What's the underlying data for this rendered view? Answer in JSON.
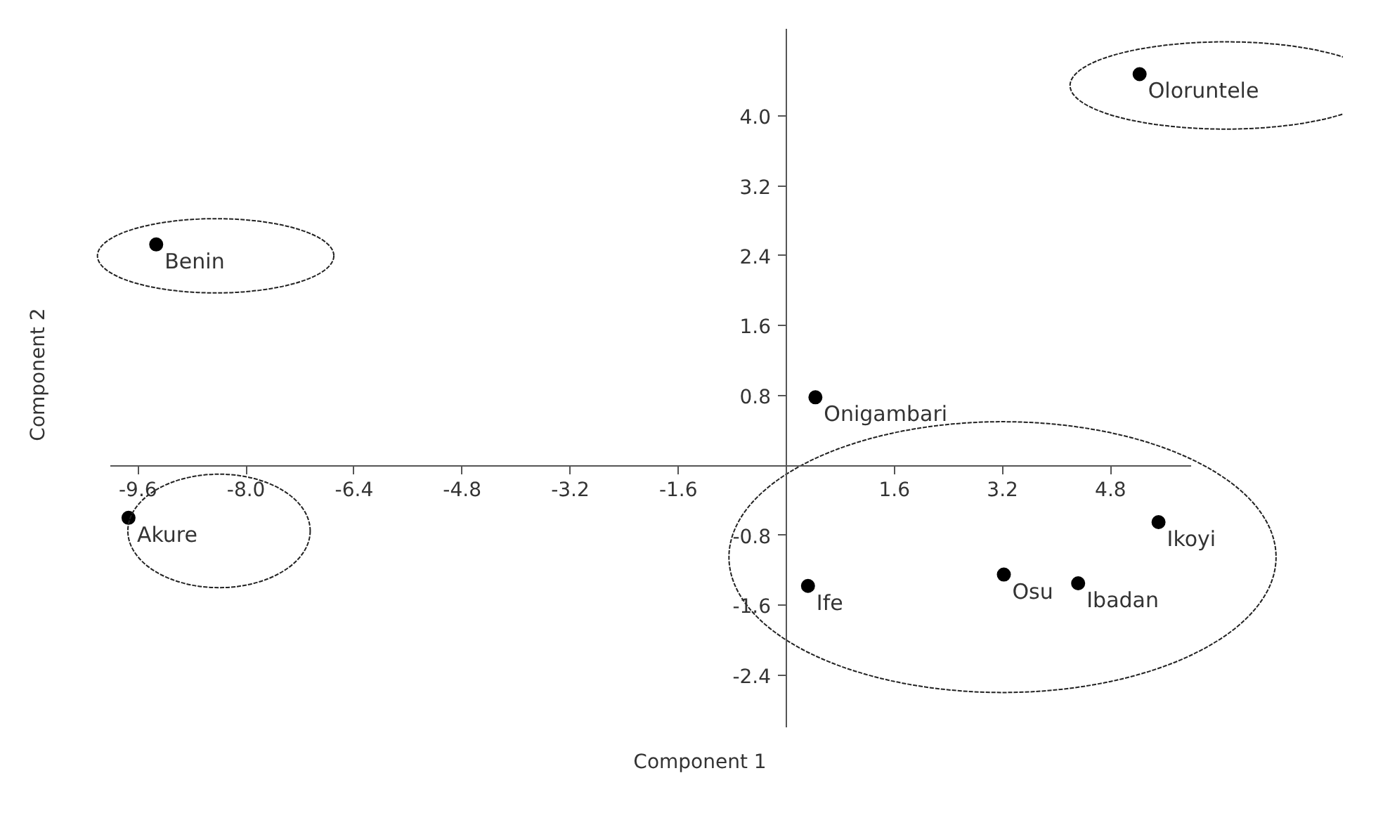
{
  "chart_data": {
    "type": "scatter",
    "xlabel": "Component 1",
    "ylabel": "Component 2",
    "x": [
      5.23,
      -9.33,
      0.43,
      -9.74,
      5.51,
      3.22,
      4.32,
      0.32
    ],
    "series": [
      {
        "color": "#000000",
        "values": [
          4.48,
          2.53,
          0.78,
          -0.6,
          -0.65,
          -1.25,
          -1.35,
          -1.38
        ]
      }
    ],
    "annotations": [
      {
        "text": "Oloruntele",
        "x": 5.23,
        "y": 4.48
      },
      {
        "text": "Benin",
        "x": -9.33,
        "y": 2.53
      },
      {
        "text": "Onigambari",
        "x": 0.43,
        "y": 0.78
      },
      {
        "text": "Akure",
        "x": -9.74,
        "y": -0.6
      },
      {
        "text": "Ikoyi",
        "x": 5.51,
        "y": -0.65
      },
      {
        "text": "Osu",
        "x": 3.22,
        "y": -1.25
      },
      {
        "text": "Ibadan",
        "x": 4.32,
        "y": -1.35
      },
      {
        "text": "Ife",
        "x": 0.32,
        "y": -1.38
      }
    ],
    "xlim": [
      -10.0,
      6.0
    ],
    "ylim": [
      -3.0,
      5.0
    ],
    "xticks": [
      -9.6,
      {
        "value": -8,
        "label": "-8.0"
      },
      -6.4,
      -4.8,
      -3.2,
      -1.6,
      1.6,
      3.2,
      4.8
    ],
    "yticks": [
      -2.4,
      -1.6,
      -0.8,
      0.8,
      1.6,
      2.4,
      3.2,
      {
        "value": 4,
        "label": "4.0"
      }
    ],
    "marker": "circle",
    "grid": false
  }
}
